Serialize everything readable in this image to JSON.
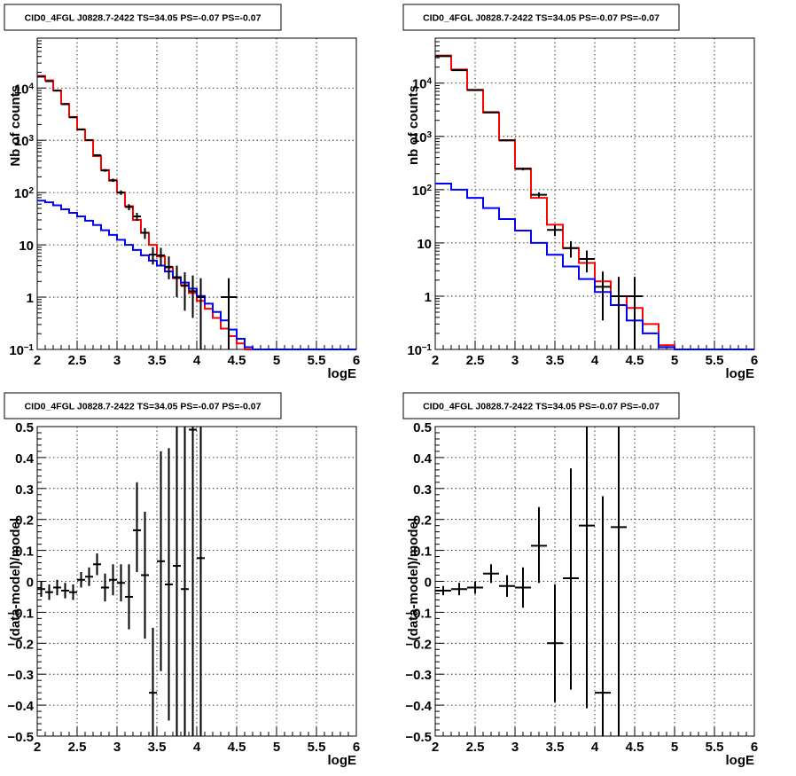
{
  "chart_data": [
    {
      "type": "line",
      "title": "CID0_4FGL J0828.7-2422 TS=34.05 PS=-0.07 PS=-0.07",
      "xlabel": "logE",
      "ylabel": "Nb of counts",
      "log_y": true,
      "xlim": [
        2,
        6
      ],
      "ylim": [
        0.1,
        90000
      ],
      "x_ticks": [
        "2",
        "2.5",
        "3",
        "3.5",
        "4",
        "4.5",
        "5",
        "5.5",
        "6"
      ],
      "y_ticks": [
        {
          "base": "10",
          "exp": "−1",
          "value": 0.1
        },
        {
          "base": "1",
          "exp": "",
          "value": 1
        },
        {
          "base": "10",
          "exp": "",
          "value": 10
        },
        {
          "base": "10",
          "exp": "2",
          "value": 100
        },
        {
          "base": "10",
          "exp": "3",
          "value": 1000
        },
        {
          "base": "10",
          "exp": "4",
          "value": 10000
        }
      ],
      "grid": true,
      "bin_edges": [
        2.0,
        2.1,
        2.2,
        2.3,
        2.4,
        2.5,
        2.6,
        2.7,
        2.8,
        2.9,
        3.0,
        3.1,
        3.2,
        3.3,
        3.4,
        3.5,
        3.6,
        3.7,
        3.8,
        3.9,
        4.0,
        4.1,
        4.2,
        4.3,
        4.4,
        4.5,
        4.6,
        4.7,
        4.8,
        4.9,
        5.0,
        5.1,
        5.2,
        5.3,
        5.4,
        5.5,
        5.6,
        5.7,
        5.8,
        5.9,
        6.0
      ],
      "series": [
        {
          "color": "#ff0000",
          "values": [
            17000,
            14000,
            9000,
            5000,
            2800,
            1600,
            1000,
            500,
            270,
            170,
            100,
            55,
            30,
            17,
            10,
            6,
            3.7,
            2.3,
            1.7,
            1.2,
            0.85,
            0.6,
            0.4,
            0.25,
            0.18,
            0.13,
            0.1,
            0.1,
            0.1,
            0.1,
            0.1,
            0.1,
            0.1,
            0.1,
            0.1,
            0.1,
            0.1,
            0.1,
            0.1,
            0.1
          ]
        },
        {
          "color": "#0000ff",
          "values": [
            70,
            65,
            57,
            48,
            41,
            35,
            29,
            24,
            19,
            15.5,
            12.5,
            10,
            8,
            6.3,
            5,
            4,
            3.1,
            2.4,
            1.9,
            1.45,
            1.05,
            0.75,
            0.52,
            0.36,
            0.24,
            0.16,
            0.11,
            0.1,
            0.1,
            0.1,
            0.1,
            0.1,
            0.1,
            0.1,
            0.1,
            0.1,
            0.1,
            0.1,
            0.1,
            0.1
          ]
        }
      ],
      "points": [
        {
          "x": 2.05,
          "y": 16500,
          "xerr": 0.05,
          "ylo": 16350,
          "yhi": 16650
        },
        {
          "x": 2.15,
          "y": 13500,
          "xerr": 0.05,
          "ylo": 13380,
          "yhi": 13620
        },
        {
          "x": 2.25,
          "y": 8900,
          "xerr": 0.05,
          "ylo": 8800,
          "yhi": 9000
        },
        {
          "x": 2.35,
          "y": 4900,
          "xerr": 0.05,
          "ylo": 4830,
          "yhi": 4970
        },
        {
          "x": 2.45,
          "y": 2750,
          "xerr": 0.05,
          "ylo": 2700,
          "yhi": 2800
        },
        {
          "x": 2.55,
          "y": 1620,
          "xerr": 0.05,
          "ylo": 1580,
          "yhi": 1660
        },
        {
          "x": 2.65,
          "y": 1010,
          "xerr": 0.05,
          "ylo": 980,
          "yhi": 1040
        },
        {
          "x": 2.75,
          "y": 520,
          "xerr": 0.05,
          "ylo": 500,
          "yhi": 540
        },
        {
          "x": 2.85,
          "y": 265,
          "xerr": 0.05,
          "ylo": 250,
          "yhi": 280
        },
        {
          "x": 2.95,
          "y": 172,
          "xerr": 0.05,
          "ylo": 160,
          "yhi": 185
        },
        {
          "x": 3.05,
          "y": 100,
          "xerr": 0.05,
          "ylo": 90,
          "yhi": 110
        },
        {
          "x": 3.15,
          "y": 53,
          "xerr": 0.05,
          "ylo": 46,
          "yhi": 60
        },
        {
          "x": 3.25,
          "y": 35,
          "xerr": 0.05,
          "ylo": 29,
          "yhi": 41
        },
        {
          "x": 3.35,
          "y": 17,
          "xerr": 0.05,
          "ylo": 13,
          "yhi": 21
        },
        {
          "x": 3.45,
          "y": 6.5,
          "xerr": 0.05,
          "ylo": 4.2,
          "yhi": 9
        },
        {
          "x": 3.55,
          "y": 6.3,
          "xerr": 0.05,
          "ylo": 4,
          "yhi": 8.8
        },
        {
          "x": 3.65,
          "y": 3.8,
          "xerr": 0.05,
          "ylo": 2.2,
          "yhi": 6
        },
        {
          "x": 3.75,
          "y": 2.4,
          "xerr": 0.05,
          "ylo": 1,
          "yhi": 4
        },
        {
          "x": 3.85,
          "y": 1.65,
          "xerr": 0.05,
          "ylo": 0.55,
          "yhi": 3
        },
        {
          "x": 3.95,
          "y": 1.3,
          "xerr": 0.05,
          "ylo": 0.4,
          "yhi": 2.6
        },
        {
          "x": 4.05,
          "y": 1,
          "xerr": 0.05,
          "ylo": 0.1,
          "yhi": 2.3
        },
        {
          "x": 4.4,
          "y": 1,
          "xerr": 0.1,
          "ylo": 0.1,
          "yhi": 2.3
        }
      ]
    },
    {
      "type": "line",
      "title": "CID0_4FGL J0828.7-2422 TS=34.05 PS=-0.07 PS=-0.07",
      "xlabel": "logE",
      "ylabel": "nb of counts",
      "log_y": true,
      "xlim": [
        2,
        6
      ],
      "ylim": [
        0.1,
        70000
      ],
      "x_ticks": [
        "2",
        "2.5",
        "3",
        "3.5",
        "4",
        "4.5",
        "5",
        "5.5",
        "6"
      ],
      "y_ticks": [
        {
          "base": "10",
          "exp": "−1",
          "value": 0.1
        },
        {
          "base": "1",
          "exp": "",
          "value": 1
        },
        {
          "base": "10",
          "exp": "",
          "value": 10
        },
        {
          "base": "10",
          "exp": "2",
          "value": 100
        },
        {
          "base": "10",
          "exp": "3",
          "value": 1000
        },
        {
          "base": "10",
          "exp": "4",
          "value": 10000
        }
      ],
      "grid": true,
      "bin_edges": [
        2.0,
        2.2,
        2.4,
        2.6,
        2.8,
        3.0,
        3.2,
        3.4,
        3.6,
        3.8,
        4.0,
        4.2,
        4.4,
        4.6,
        4.8,
        5.0,
        5.2,
        5.4,
        5.6,
        5.8,
        6.0
      ],
      "series": [
        {
          "color": "#ff0000",
          "values": [
            33000,
            18000,
            7500,
            2800,
            850,
            250,
            70,
            22,
            8,
            4.2,
            1.9,
            1,
            0.6,
            0.3,
            0.12,
            0.1,
            0.1,
            0.1,
            0.1,
            0.1
          ]
        },
        {
          "color": "#0000ff",
          "values": [
            130,
            100,
            70,
            45,
            28,
            17,
            10,
            6,
            3.6,
            2.1,
            1.2,
            0.68,
            0.35,
            0.2,
            0.11,
            0.1,
            0.1,
            0.1,
            0.1,
            0.1
          ]
        }
      ],
      "points": [
        {
          "x": 2.1,
          "y": 32000,
          "xerr": 0.1,
          "ylo": 31700,
          "yhi": 32300
        },
        {
          "x": 2.3,
          "y": 17500,
          "xerr": 0.1,
          "ylo": 17300,
          "yhi": 17700
        },
        {
          "x": 2.5,
          "y": 7400,
          "xerr": 0.1,
          "ylo": 7300,
          "yhi": 7500
        },
        {
          "x": 2.7,
          "y": 2850,
          "xerr": 0.1,
          "ylo": 2800,
          "yhi": 2900
        },
        {
          "x": 2.9,
          "y": 840,
          "xerr": 0.1,
          "ylo": 810,
          "yhi": 870
        },
        {
          "x": 3.1,
          "y": 245,
          "xerr": 0.1,
          "ylo": 230,
          "yhi": 260
        },
        {
          "x": 3.3,
          "y": 80,
          "xerr": 0.1,
          "ylo": 71,
          "yhi": 89
        },
        {
          "x": 3.5,
          "y": 17.5,
          "xerr": 0.1,
          "ylo": 13.5,
          "yhi": 21.5
        },
        {
          "x": 3.7,
          "y": 8,
          "xerr": 0.1,
          "ylo": 5.3,
          "yhi": 10.8
        },
        {
          "x": 3.9,
          "y": 5,
          "xerr": 0.1,
          "ylo": 2.8,
          "yhi": 7.2
        },
        {
          "x": 4.1,
          "y": 1.5,
          "xerr": 0.1,
          "ylo": 0.35,
          "yhi": 2.9
        },
        {
          "x": 4.3,
          "y": 1,
          "xerr": 0.1,
          "ylo": 0.1,
          "yhi": 2.3
        },
        {
          "x": 4.5,
          "y": 1,
          "xerr": 0.1,
          "ylo": 0.1,
          "yhi": 2.3
        }
      ]
    },
    {
      "type": "scatter",
      "title": "CID0_4FGL J0828.7-2422 TS=34.05 PS=-0.07 PS=-0.07",
      "xlabel": "logE",
      "ylabel": "(data-model)/model",
      "xlim": [
        2,
        6
      ],
      "ylim": [
        -0.5,
        0.5
      ],
      "x_ticks": [
        "2",
        "2.5",
        "3",
        "3.5",
        "4",
        "4.5",
        "5",
        "5.5",
        "6"
      ],
      "y_ticks": [
        "−0.5",
        "−0.4",
        "−0.3",
        "−0.2",
        "−0.1",
        "0",
        "0.1",
        "0.2",
        "0.3",
        "0.4",
        "0.5"
      ],
      "grid": true,
      "points": [
        {
          "x": 2.05,
          "y": -0.025,
          "xerr": 0.05,
          "ylo": -0.05,
          "yhi": 0.0
        },
        {
          "x": 2.15,
          "y": -0.035,
          "xerr": 0.05,
          "ylo": -0.06,
          "yhi": -0.01
        },
        {
          "x": 2.25,
          "y": -0.02,
          "xerr": 0.05,
          "ylo": -0.045,
          "yhi": 0.005
        },
        {
          "x": 2.35,
          "y": -0.03,
          "xerr": 0.05,
          "ylo": -0.055,
          "yhi": -0.005
        },
        {
          "x": 2.45,
          "y": -0.035,
          "xerr": 0.05,
          "ylo": -0.06,
          "yhi": -0.01
        },
        {
          "x": 2.55,
          "y": 0.005,
          "xerr": 0.05,
          "ylo": -0.02,
          "yhi": 0.03
        },
        {
          "x": 2.65,
          "y": 0.015,
          "xerr": 0.05,
          "ylo": -0.015,
          "yhi": 0.045
        },
        {
          "x": 2.75,
          "y": 0.055,
          "xerr": 0.05,
          "ylo": 0.02,
          "yhi": 0.09
        },
        {
          "x": 2.85,
          "y": -0.02,
          "xerr": 0.05,
          "ylo": -0.065,
          "yhi": 0.025
        },
        {
          "x": 2.95,
          "y": 0.005,
          "xerr": 0.05,
          "ylo": -0.045,
          "yhi": 0.055
        },
        {
          "x": 3.05,
          "y": -0.005,
          "xerr": 0.05,
          "ylo": -0.065,
          "yhi": 0.055
        },
        {
          "x": 3.15,
          "y": -0.05,
          "xerr": 0.05,
          "ylo": -0.155,
          "yhi": 0.055
        },
        {
          "x": 3.25,
          "y": 0.165,
          "xerr": 0.05,
          "ylo": 0.03,
          "yhi": 0.32
        },
        {
          "x": 3.35,
          "y": 0.02,
          "xerr": 0.05,
          "ylo": -0.185,
          "yhi": 0.225
        },
        {
          "x": 3.45,
          "y": -0.36,
          "xerr": 0.05,
          "ylo": -0.5,
          "yhi": -0.15
        },
        {
          "x": 3.55,
          "y": 0.065,
          "xerr": 0.05,
          "ylo": -0.29,
          "yhi": 0.42
        },
        {
          "x": 3.65,
          "y": -0.01,
          "xerr": 0.05,
          "ylo": -0.45,
          "yhi": 0.43
        },
        {
          "x": 3.75,
          "y": 0.05,
          "xerr": 0.05,
          "ylo": -0.5,
          "yhi": 0.5
        },
        {
          "x": 3.85,
          "y": -0.025,
          "xerr": 0.05,
          "ylo": -0.5,
          "yhi": 0.5
        },
        {
          "x": 3.95,
          "y": 0.49,
          "xerr": 0.05,
          "ylo": -0.5,
          "yhi": 0.5
        },
        {
          "x": 4.05,
          "y": 0.075,
          "xerr": 0.05,
          "ylo": -0.5,
          "yhi": 0.5
        }
      ]
    },
    {
      "type": "scatter",
      "title": "CID0_4FGL J0828.7-2422 TS=34.05 PS=-0.07 PS=-0.07",
      "xlabel": "logE",
      "ylabel": "(data-model)/model",
      "xlim": [
        2,
        6
      ],
      "ylim": [
        -0.5,
        0.5
      ],
      "x_ticks": [
        "2",
        "2.5",
        "3",
        "3.5",
        "4",
        "4.5",
        "5",
        "5.5",
        "6"
      ],
      "y_ticks": [
        "−0.5",
        "−0.4",
        "−0.3",
        "−0.2",
        "−0.1",
        "0",
        "0.1",
        "0.2",
        "0.3",
        "0.4",
        "0.5"
      ],
      "grid": true,
      "points": [
        {
          "x": 2.1,
          "y": -0.03,
          "xerr": 0.1,
          "ylo": -0.045,
          "yhi": -0.015
        },
        {
          "x": 2.3,
          "y": -0.025,
          "xerr": 0.1,
          "ylo": -0.045,
          "yhi": -0.005
        },
        {
          "x": 2.5,
          "y": -0.02,
          "xerr": 0.1,
          "ylo": -0.04,
          "yhi": 0.0
        },
        {
          "x": 2.7,
          "y": 0.025,
          "xerr": 0.1,
          "ylo": -0.005,
          "yhi": 0.055
        },
        {
          "x": 2.9,
          "y": -0.015,
          "xerr": 0.1,
          "ylo": -0.05,
          "yhi": 0.02
        },
        {
          "x": 3.1,
          "y": -0.02,
          "xerr": 0.1,
          "ylo": -0.085,
          "yhi": 0.045
        },
        {
          "x": 3.3,
          "y": 0.115,
          "xerr": 0.1,
          "ylo": -0.005,
          "yhi": 0.24
        },
        {
          "x": 3.5,
          "y": -0.2,
          "xerr": 0.1,
          "ylo": -0.39,
          "yhi": -0.01
        },
        {
          "x": 3.7,
          "y": 0.01,
          "xerr": 0.1,
          "ylo": -0.35,
          "yhi": 0.365
        },
        {
          "x": 3.9,
          "y": 0.18,
          "xerr": 0.1,
          "ylo": -0.41,
          "yhi": 0.5
        },
        {
          "x": 4.1,
          "y": -0.36,
          "xerr": 0.1,
          "ylo": -0.5,
          "yhi": 0.275
        },
        {
          "x": 4.3,
          "y": 0.175,
          "xerr": 0.1,
          "ylo": -0.5,
          "yhi": 0.5
        }
      ]
    }
  ]
}
